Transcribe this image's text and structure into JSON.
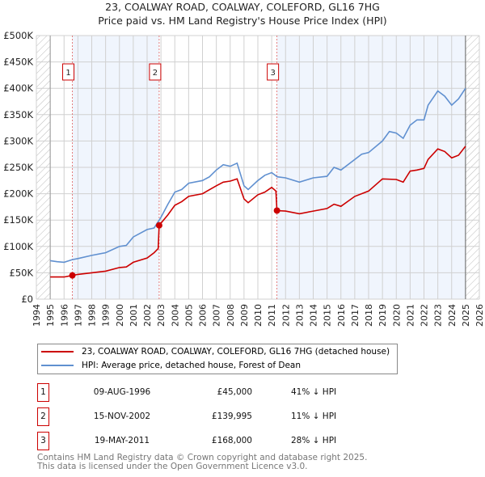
{
  "chart_data": {
    "type": "line",
    "title": "23, COALWAY ROAD, COALWAY, COLEFORD, GL16 7HG",
    "subtitle": "Price paid vs. HM Land Registry's House Price Index (HPI)",
    "xlim": [
      1994,
      2026
    ],
    "ylim": [
      0,
      500000
    ],
    "x_ticks": [
      "1994",
      "1995",
      "1996",
      "1997",
      "1998",
      "1999",
      "2000",
      "2001",
      "2002",
      "2003",
      "2004",
      "2005",
      "2006",
      "2007",
      "2008",
      "2009",
      "2010",
      "2011",
      "2012",
      "2013",
      "2014",
      "2015",
      "2016",
      "2017",
      "2018",
      "2019",
      "2020",
      "2021",
      "2022",
      "2023",
      "2024",
      "2025",
      "2026"
    ],
    "y_ticks": [
      {
        "v": 0,
        "label": "£0"
      },
      {
        "v": 50000,
        "label": "£50K"
      },
      {
        "v": 100000,
        "label": "£100K"
      },
      {
        "v": 150000,
        "label": "£150K"
      },
      {
        "v": 200000,
        "label": "£200K"
      },
      {
        "v": 250000,
        "label": "£250K"
      },
      {
        "v": 300000,
        "label": "£300K"
      },
      {
        "v": 350000,
        "label": "£350K"
      },
      {
        "v": 400000,
        "label": "£400K"
      },
      {
        "v": 450000,
        "label": "£450K"
      },
      {
        "v": 500000,
        "label": "£500K"
      }
    ],
    "grid": true,
    "series": [
      {
        "name": "23, COALWAY ROAD, COALWAY, COLEFORD, GL16 7HG (detached house)",
        "color": "#cc0000",
        "x": [
          1995,
          1996,
          1996.6,
          1997,
          1998,
          1999,
          2000,
          2000.5,
          2001,
          2002,
          2002.5,
          2002.8,
          2002.87,
          2003.5,
          2004,
          2004.5,
          2005,
          2006,
          2007,
          2007.5,
          2008,
          2008.5,
          2009,
          2009.3,
          2010,
          2010.5,
          2011,
          2011.3,
          2011.38,
          2012,
          2013,
          2014,
          2015,
          2015.5,
          2016,
          2017,
          2018,
          2019,
          2020,
          2020.5,
          2021,
          2021.5,
          2022,
          2022.3,
          2023,
          2023.5,
          2024,
          2024.5,
          2025
        ],
        "y": [
          42000,
          42000,
          45000,
          47000,
          50000,
          53000,
          60000,
          61000,
          70000,
          78000,
          88000,
          96000,
          140000,
          160000,
          178000,
          185000,
          195000,
          200000,
          215000,
          222000,
          224000,
          228000,
          190000,
          183000,
          198000,
          203000,
          212000,
          205000,
          168000,
          167000,
          162000,
          167000,
          172000,
          180000,
          176000,
          195000,
          205000,
          228000,
          227000,
          222000,
          243000,
          245000,
          248000,
          265000,
          285000,
          280000,
          268000,
          273000,
          290000
        ]
      },
      {
        "name": "HPI: Average price, detached house, Forest of Dean",
        "color": "#6090d0",
        "x": [
          1995,
          1995.5,
          1996,
          1996.6,
          1997,
          1998,
          1999,
          2000,
          2000.5,
          2001,
          2002,
          2002.5,
          2003,
          2003.5,
          2004,
          2004.5,
          2005,
          2006,
          2006.5,
          2007,
          2007.5,
          2008,
          2008.5,
          2009,
          2009.3,
          2010,
          2010.5,
          2011,
          2011.4,
          2012,
          2013,
          2014,
          2015,
          2015.5,
          2016,
          2017,
          2017.5,
          2018,
          2019,
          2019.5,
          2020,
          2020.5,
          2021,
          2021.5,
          2022,
          2022.3,
          2023,
          2023.5,
          2024,
          2024.5,
          2025
        ],
        "y": [
          73000,
          71000,
          70000,
          75000,
          77000,
          83000,
          88000,
          100000,
          102000,
          118000,
          132000,
          135000,
          155000,
          180000,
          203000,
          208000,
          220000,
          225000,
          232000,
          245000,
          255000,
          252000,
          258000,
          215000,
          208000,
          225000,
          235000,
          240000,
          232000,
          230000,
          222000,
          230000,
          233000,
          250000,
          245000,
          265000,
          275000,
          278000,
          300000,
          318000,
          315000,
          305000,
          330000,
          340000,
          340000,
          368000,
          395000,
          385000,
          368000,
          380000,
          400000
        ]
      }
    ],
    "sales": [
      {
        "label": "1",
        "x": 1996.6,
        "y": 45000
      },
      {
        "label": "2",
        "x": 2002.87,
        "y": 139995
      },
      {
        "label": "3",
        "x": 2011.38,
        "y": 168000
      }
    ],
    "shaded_ranges": [
      [
        1996.6,
        2002.87
      ],
      [
        2011.38,
        2025
      ]
    ],
    "hatched_ranges": [
      [
        1994,
        1995
      ],
      [
        2025,
        2026
      ]
    ]
  },
  "table": [
    {
      "num": "1",
      "date": "09-AUG-1996",
      "price": "£45,000",
      "hpi": "41% ↓ HPI"
    },
    {
      "num": "2",
      "date": "15-NOV-2002",
      "price": "£139,995",
      "hpi": "11% ↓ HPI"
    },
    {
      "num": "3",
      "date": "19-MAY-2011",
      "price": "£168,000",
      "hpi": "28% ↓ HPI"
    }
  ],
  "footer": {
    "line1": "Contains HM Land Registry data © Crown copyright and database right 2025.",
    "line2": "This data is licensed under the Open Government Licence v3.0."
  }
}
